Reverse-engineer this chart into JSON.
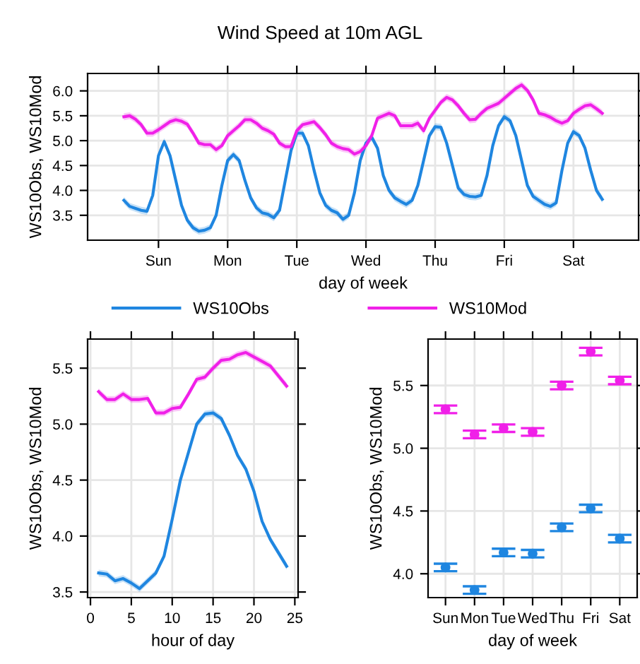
{
  "chart_data": [
    {
      "type": "line",
      "title": "Wind Speed at 10m AGL",
      "xlabel": "day of week",
      "ylabel": "WS10Obs, WS10Mod",
      "categories": [
        null,
        null,
        null,
        null,
        null,
        null,
        "Sun",
        null,
        null,
        null,
        null,
        null,
        null,
        null,
        null,
        null,
        null,
        null,
        "Mon",
        null,
        null,
        null,
        null,
        null,
        null,
        null,
        null,
        null,
        null,
        null,
        "Tue",
        null,
        null,
        null,
        null,
        null,
        null,
        null,
        null,
        null,
        null,
        null,
        "Wed",
        null,
        null,
        null,
        null,
        null,
        null,
        null,
        null,
        null,
        null,
        null,
        "Thu",
        null,
        null,
        null,
        null,
        null,
        null,
        null,
        null,
        null,
        null,
        null,
        "Fri",
        null,
        null,
        null,
        null,
        null,
        null,
        null,
        null,
        null,
        null,
        null,
        "Sat",
        null,
        null,
        null,
        null,
        null
      ],
      "ylim": [
        3.0,
        6.35
      ],
      "yticks": [
        3.5,
        {
          "value": 4,
          "label": "4.0"
        },
        4.5,
        {
          "value": 5,
          "label": "5.0"
        },
        5.5,
        {
          "value": 6,
          "label": "6.0"
        }
      ],
      "grid": true,
      "legend": "bottom",
      "series": [
        {
          "name": "WS10Obs",
          "color": "#1f86e0",
          "values": [
            3.8,
            3.68,
            3.64,
            3.6,
            3.58,
            3.9,
            4.7,
            4.98,
            4.7,
            4.2,
            3.7,
            3.4,
            3.25,
            3.18,
            3.2,
            3.25,
            3.5,
            4.1,
            4.6,
            4.72,
            4.6,
            4.2,
            3.85,
            3.65,
            3.55,
            3.52,
            3.45,
            3.6,
            4.2,
            4.8,
            5.15,
            5.15,
            4.9,
            4.4,
            3.95,
            3.7,
            3.6,
            3.55,
            3.42,
            3.5,
            3.95,
            4.6,
            4.95,
            5.07,
            4.85,
            4.3,
            4.0,
            3.85,
            3.78,
            3.72,
            3.8,
            4.1,
            4.6,
            5.1,
            5.28,
            5.27,
            4.95,
            4.5,
            4.05,
            3.92,
            3.88,
            3.87,
            3.9,
            4.3,
            4.9,
            5.3,
            5.48,
            5.4,
            5.1,
            4.6,
            4.1,
            3.88,
            3.8,
            3.72,
            3.68,
            3.75,
            4.4,
            4.95,
            5.18,
            5.1,
            4.85,
            4.4,
            4.0,
            3.82
          ],
          "lower": [
            3.73,
            3.61,
            3.57,
            3.53,
            3.51,
            3.83,
            4.63,
            4.91,
            4.63,
            4.13,
            3.63,
            3.33,
            3.18,
            3.11,
            3.13,
            3.18,
            3.43,
            4.03,
            4.53,
            4.65,
            4.53,
            4.13,
            3.78,
            3.58,
            3.48,
            3.45,
            3.38,
            3.53,
            4.13,
            4.73,
            5.08,
            5.08,
            4.83,
            4.33,
            3.88,
            3.63,
            3.53,
            3.48,
            3.35,
            3.43,
            3.88,
            4.53,
            4.88,
            5.0,
            4.78,
            4.23,
            3.93,
            3.78,
            3.71,
            3.65,
            3.73,
            4.03,
            4.53,
            5.03,
            5.21,
            5.2,
            4.88,
            4.43,
            3.98,
            3.85,
            3.81,
            3.8,
            3.83,
            4.23,
            4.83,
            5.23,
            5.41,
            5.33,
            5.03,
            4.53,
            4.03,
            3.81,
            3.73,
            3.65,
            3.61,
            3.68,
            4.33,
            4.88,
            5.11,
            5.03,
            4.78,
            4.33,
            3.93,
            3.75
          ],
          "upper": [
            3.87,
            3.75,
            3.71,
            3.67,
            3.65,
            3.97,
            4.77,
            5.05,
            4.77,
            4.27,
            3.77,
            3.47,
            3.32,
            3.25,
            3.27,
            3.32,
            3.57,
            4.17,
            4.67,
            4.79,
            4.67,
            4.27,
            3.92,
            3.72,
            3.62,
            3.59,
            3.52,
            3.67,
            4.27,
            4.87,
            5.22,
            5.22,
            4.97,
            4.47,
            4.02,
            3.77,
            3.67,
            3.62,
            3.49,
            3.57,
            4.02,
            4.67,
            5.02,
            5.14,
            4.92,
            4.37,
            4.07,
            3.92,
            3.85,
            3.79,
            3.87,
            4.17,
            4.67,
            5.17,
            5.35,
            5.34,
            5.02,
            4.57,
            4.12,
            3.99,
            3.95,
            3.94,
            3.97,
            4.37,
            4.97,
            5.37,
            5.55,
            5.47,
            5.17,
            4.67,
            4.17,
            3.95,
            3.87,
            3.79,
            3.75,
            3.82,
            4.47,
            5.02,
            5.25,
            5.17,
            4.92,
            4.47,
            4.07,
            3.89
          ]
        },
        {
          "name": "WS10Mod",
          "color": "#f020e8",
          "values": [
            5.48,
            5.5,
            5.43,
            5.32,
            5.15,
            5.15,
            5.22,
            5.3,
            5.38,
            5.42,
            5.39,
            5.33,
            5.15,
            4.95,
            4.92,
            4.92,
            4.82,
            4.9,
            5.1,
            5.2,
            5.3,
            5.42,
            5.42,
            5.35,
            5.25,
            5.2,
            5.13,
            4.95,
            4.88,
            4.88,
            5.2,
            5.32,
            5.35,
            5.38,
            5.26,
            5.12,
            4.95,
            4.88,
            4.84,
            4.82,
            4.73,
            4.78,
            4.9,
            5.1,
            5.45,
            5.5,
            5.55,
            5.5,
            5.3,
            5.3,
            5.3,
            5.35,
            5.2,
            5.45,
            5.61,
            5.77,
            5.87,
            5.82,
            5.7,
            5.55,
            5.42,
            5.43,
            5.55,
            5.65,
            5.7,
            5.75,
            5.85,
            5.95,
            6.05,
            6.12,
            6.01,
            5.82,
            5.55,
            5.52,
            5.47,
            5.4,
            5.35,
            5.4,
            5.55,
            5.63,
            5.7,
            5.72,
            5.64,
            5.55
          ],
          "lower": [
            5.41,
            5.43,
            5.36,
            5.25,
            5.08,
            5.08,
            5.15,
            5.23,
            5.31,
            5.35,
            5.32,
            5.26,
            5.08,
            4.88,
            4.85,
            4.85,
            4.75,
            4.83,
            5.03,
            5.13,
            5.23,
            5.35,
            5.35,
            5.28,
            5.18,
            5.13,
            5.06,
            4.88,
            4.81,
            4.81,
            5.13,
            5.25,
            5.28,
            5.31,
            5.19,
            5.05,
            4.88,
            4.81,
            4.77,
            4.75,
            4.66,
            4.71,
            4.83,
            5.03,
            5.38,
            5.43,
            5.48,
            5.43,
            5.23,
            5.23,
            5.23,
            5.28,
            5.13,
            5.38,
            5.54,
            5.7,
            5.8,
            5.75,
            5.63,
            5.48,
            5.35,
            5.36,
            5.48,
            5.58,
            5.63,
            5.68,
            5.78,
            5.88,
            5.98,
            6.05,
            5.94,
            5.75,
            5.48,
            5.45,
            5.4,
            5.33,
            5.28,
            5.33,
            5.48,
            5.56,
            5.63,
            5.65,
            5.57,
            5.48
          ],
          "upper": [
            5.55,
            5.57,
            5.5,
            5.39,
            5.22,
            5.22,
            5.29,
            5.37,
            5.45,
            5.49,
            5.46,
            5.4,
            5.22,
            5.02,
            4.99,
            4.99,
            4.89,
            4.97,
            5.17,
            5.27,
            5.37,
            5.49,
            5.49,
            5.42,
            5.32,
            5.27,
            5.2,
            5.02,
            4.95,
            4.95,
            5.27,
            5.39,
            5.42,
            5.45,
            5.33,
            5.19,
            5.02,
            4.95,
            4.91,
            4.89,
            4.8,
            4.85,
            4.97,
            5.17,
            5.52,
            5.57,
            5.62,
            5.57,
            5.37,
            5.37,
            5.37,
            5.42,
            5.27,
            5.52,
            5.68,
            5.84,
            5.94,
            5.89,
            5.77,
            5.62,
            5.49,
            5.5,
            5.62,
            5.72,
            5.77,
            5.82,
            5.92,
            6.02,
            6.12,
            6.19,
            6.08,
            5.89,
            5.62,
            5.59,
            5.54,
            5.47,
            5.42,
            5.47,
            5.62,
            5.7,
            5.77,
            5.79,
            5.71,
            5.62
          ]
        }
      ]
    },
    {
      "type": "line",
      "xlabel": "hour of day",
      "ylabel": "WS10Obs, WS10Mod",
      "x": [
        1,
        2,
        3,
        4,
        5,
        6,
        7,
        8,
        9,
        10,
        11,
        12,
        13,
        14,
        15,
        16,
        17,
        18,
        19,
        20,
        21,
        22,
        23,
        24
      ],
      "xlim": [
        -0.35,
        25.4
      ],
      "ylim": [
        3.45,
        5.76
      ],
      "xticks": [
        0,
        5,
        10,
        15,
        20,
        25
      ],
      "yticks": [
        3.5,
        {
          "value": 4,
          "label": "4.0"
        },
        4.5,
        {
          "value": 5,
          "label": "5.0"
        },
        5.5
      ],
      "grid": true,
      "legend": "top",
      "series": [
        {
          "name": "WS10Obs",
          "color": "#1f86e0",
          "values": [
            3.67,
            3.66,
            3.6,
            3.62,
            3.58,
            3.53,
            3.6,
            3.67,
            3.82,
            4.15,
            4.5,
            4.75,
            5.0,
            5.09,
            5.1,
            5.05,
            4.9,
            4.72,
            4.6,
            4.4,
            4.13,
            3.97,
            3.85,
            3.73
          ],
          "lower": [
            3.64,
            3.63,
            3.57,
            3.59,
            3.55,
            3.5,
            3.57,
            3.64,
            3.79,
            4.12,
            4.47,
            4.72,
            4.97,
            5.06,
            5.07,
            5.02,
            4.87,
            4.69,
            4.57,
            4.37,
            4.1,
            3.94,
            3.82,
            3.7
          ],
          "upper": [
            3.7,
            3.69,
            3.63,
            3.65,
            3.61,
            3.56,
            3.63,
            3.7,
            3.85,
            4.18,
            4.53,
            4.78,
            5.03,
            5.12,
            5.13,
            5.08,
            4.93,
            4.75,
            4.63,
            4.43,
            4.16,
            4.0,
            3.88,
            3.76
          ]
        },
        {
          "name": "WS10Mod",
          "color": "#f020e8",
          "values": [
            5.29,
            5.22,
            5.22,
            5.27,
            5.22,
            5.22,
            5.23,
            5.1,
            5.1,
            5.14,
            5.15,
            5.27,
            5.4,
            5.42,
            5.5,
            5.57,
            5.58,
            5.62,
            5.64,
            5.6,
            5.56,
            5.52,
            5.43,
            5.34
          ],
          "lower": [
            5.26,
            5.19,
            5.19,
            5.24,
            5.19,
            5.19,
            5.2,
            5.07,
            5.07,
            5.11,
            5.12,
            5.24,
            5.37,
            5.39,
            5.47,
            5.54,
            5.55,
            5.59,
            5.61,
            5.57,
            5.53,
            5.49,
            5.4,
            5.31
          ],
          "upper": [
            5.32,
            5.25,
            5.25,
            5.3,
            5.25,
            5.25,
            5.26,
            5.13,
            5.13,
            5.17,
            5.18,
            5.3,
            5.43,
            5.45,
            5.53,
            5.6,
            5.61,
            5.65,
            5.67,
            5.63,
            5.59,
            5.55,
            5.46,
            5.37
          ]
        }
      ]
    },
    {
      "type": "scatter",
      "xlabel": "day of week",
      "ylabel": "WS10Obs, WS10Mod",
      "categories": [
        "Sun",
        "Mon",
        "Tue",
        "Wed",
        "Thu",
        "Fri",
        "Sat"
      ],
      "ylim": [
        3.81,
        5.87
      ],
      "yticks": [
        {
          "value": 4,
          "label": "4.0"
        },
        4.5,
        {
          "value": 5,
          "label": "5.0"
        },
        5.5
      ],
      "grid": true,
      "marker": "circle",
      "legend": "top",
      "series": [
        {
          "name": "WS10Obs",
          "color": "#1f86e0",
          "values": [
            4.05,
            3.87,
            4.17,
            4.16,
            4.37,
            4.52,
            4.28
          ],
          "errors": [
            0.03,
            0.03,
            0.03,
            0.03,
            0.03,
            0.03,
            0.03
          ]
        },
        {
          "name": "WS10Mod",
          "color": "#f020e8",
          "values": [
            5.31,
            5.11,
            5.16,
            5.13,
            5.5,
            5.77,
            5.54
          ],
          "errors": [
            0.03,
            0.03,
            0.03,
            0.03,
            0.03,
            0.03,
            0.03
          ]
        }
      ]
    }
  ]
}
